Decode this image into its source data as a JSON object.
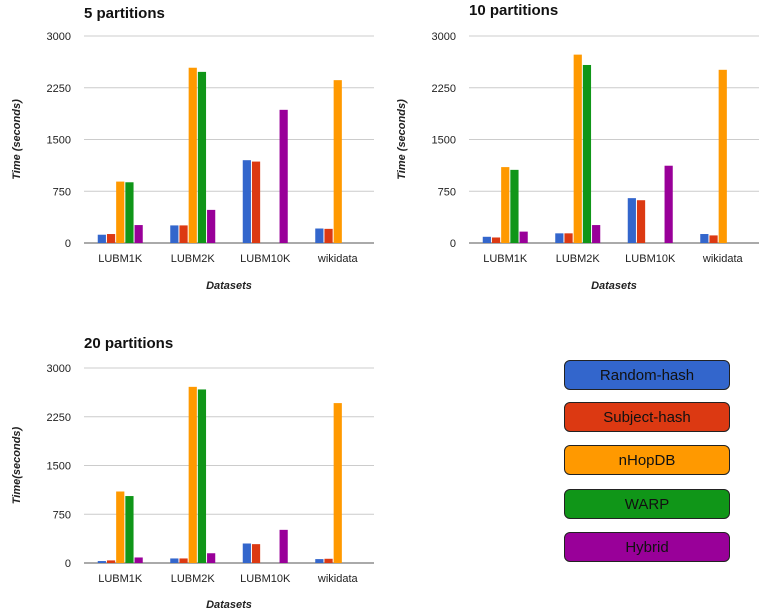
{
  "chart_data": [
    {
      "type": "bar",
      "title": "5 partitions",
      "xlabel": "Datasets",
      "ylabel": "Time (seconds)",
      "categories": [
        "LUBM1K",
        "LUBM2K",
        "LUBM10K",
        "wikidata"
      ],
      "yticks": [
        "0",
        "750",
        "1500",
        "2250",
        "3000"
      ],
      "ylim": [
        0,
        3000
      ],
      "grid": true,
      "series": [
        {
          "name": "Random-hash",
          "color": "#3366cc",
          "values": [
            120,
            255,
            1200,
            210
          ]
        },
        {
          "name": "Subject-hash",
          "color": "#dc3912",
          "values": [
            130,
            255,
            1180,
            205
          ]
        },
        {
          "name": "nHopDB",
          "color": "#ff9900",
          "values": [
            890,
            2540,
            0,
            2360
          ]
        },
        {
          "name": "WARP",
          "color": "#109618",
          "values": [
            880,
            2480,
            0,
            0
          ]
        },
        {
          "name": "Hybrid",
          "color": "#990099",
          "values": [
            260,
            480,
            1930,
            0
          ]
        }
      ]
    },
    {
      "type": "bar",
      "title": "10 partitions",
      "xlabel": "Datasets",
      "ylabel": "Time (seconds)",
      "categories": [
        "LUBM1K",
        "LUBM2K",
        "LUBM10K",
        "wikidata"
      ],
      "yticks": [
        "0",
        "750",
        "1500",
        "2250",
        "3000"
      ],
      "ylim": [
        0,
        3000
      ],
      "grid": true,
      "series": [
        {
          "name": "Random-hash",
          "color": "#3366cc",
          "values": [
            90,
            140,
            650,
            130
          ]
        },
        {
          "name": "Subject-hash",
          "color": "#dc3912",
          "values": [
            80,
            140,
            620,
            110
          ]
        },
        {
          "name": "nHopDB",
          "color": "#ff9900",
          "values": [
            1100,
            2730,
            0,
            2510
          ]
        },
        {
          "name": "WARP",
          "color": "#109618",
          "values": [
            1060,
            2580,
            0,
            0
          ]
        },
        {
          "name": "Hybrid",
          "color": "#990099",
          "values": [
            165,
            260,
            1120,
            0
          ]
        }
      ]
    },
    {
      "type": "bar",
      "title": "20 partitions",
      "xlabel": "Datasets",
      "ylabel": "Time(seconds)",
      "categories": [
        "LUBM1K",
        "LUBM2K",
        "LUBM10K",
        "wikidata"
      ],
      "yticks": [
        "0",
        "750",
        "1500",
        "2250",
        "3000"
      ],
      "ylim": [
        0,
        3000
      ],
      "grid": true,
      "series": [
        {
          "name": "Random-hash",
          "color": "#3366cc",
          "values": [
            30,
            70,
            300,
            60
          ]
        },
        {
          "name": "Subject-hash",
          "color": "#dc3912",
          "values": [
            40,
            70,
            290,
            65
          ]
        },
        {
          "name": "nHopDB",
          "color": "#ff9900",
          "values": [
            1100,
            2710,
            0,
            2460
          ]
        },
        {
          "name": "WARP",
          "color": "#109618",
          "values": [
            1030,
            2670,
            0,
            0
          ]
        },
        {
          "name": "Hybrid",
          "color": "#990099",
          "values": [
            85,
            150,
            510,
            0
          ]
        }
      ]
    }
  ],
  "legend": [
    {
      "label": "Random-hash",
      "color": "#3366cc"
    },
    {
      "label": "Subject-hash",
      "color": "#dc3912"
    },
    {
      "label": "nHopDB",
      "color": "#ff9900"
    },
    {
      "label": "WARP",
      "color": "#109618"
    },
    {
      "label": "Hybrid",
      "color": "#990099"
    }
  ]
}
